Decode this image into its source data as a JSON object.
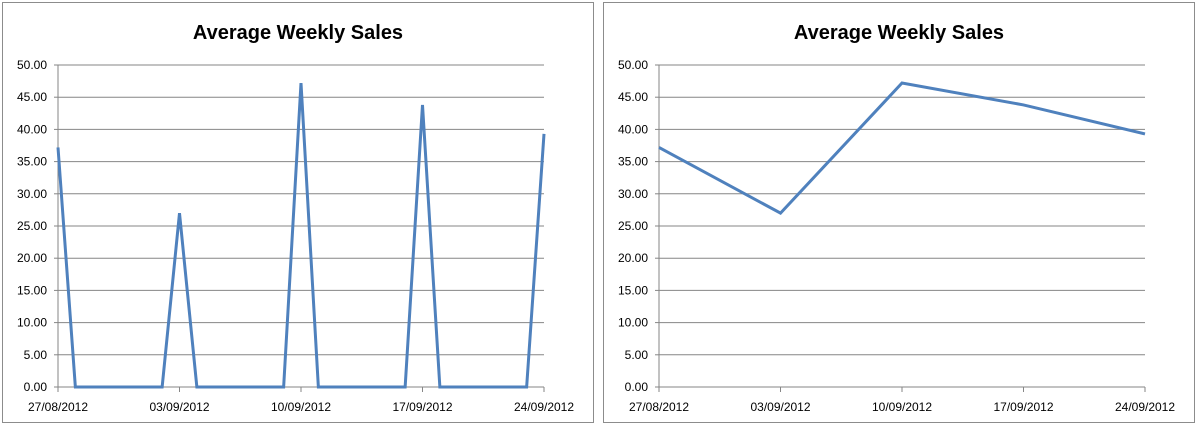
{
  "chart_data": [
    {
      "type": "line",
      "title": "Average Weekly Sales",
      "xlabel": "",
      "ylabel": "",
      "ylim": [
        0,
        50
      ],
      "y_ticks": [
        "0.00",
        "5.00",
        "10.00",
        "15.00",
        "20.00",
        "25.00",
        "30.00",
        "35.00",
        "40.00",
        "45.00",
        "50.00"
      ],
      "x_axis": "date (daily)",
      "x_ticks": [
        "27/08/2012",
        "03/09/2012",
        "10/09/2012",
        "17/09/2012",
        "24/09/2012"
      ],
      "grid": "horizontal",
      "legend": "none",
      "line_color": "#4F81BD",
      "x": [
        "27/08/2012",
        "28/08/2012",
        "29/08/2012",
        "30/08/2012",
        "31/08/2012",
        "01/09/2012",
        "02/09/2012",
        "03/09/2012",
        "04/09/2012",
        "05/09/2012",
        "06/09/2012",
        "07/09/2012",
        "08/09/2012",
        "09/09/2012",
        "10/09/2012",
        "11/09/2012",
        "12/09/2012",
        "13/09/2012",
        "14/09/2012",
        "15/09/2012",
        "16/09/2012",
        "17/09/2012",
        "18/09/2012",
        "19/09/2012",
        "20/09/2012",
        "21/09/2012",
        "22/09/2012",
        "23/09/2012",
        "24/09/2012"
      ],
      "series": [
        {
          "values": [
            37.2,
            0,
            0,
            0,
            0,
            0,
            0,
            27.0,
            0,
            0,
            0,
            0,
            0,
            0,
            47.2,
            0,
            0,
            0,
            0,
            0,
            0,
            43.8,
            0,
            0,
            0,
            0,
            0,
            0,
            39.3
          ]
        }
      ]
    },
    {
      "type": "line",
      "title": "Average Weekly Sales",
      "xlabel": "",
      "ylabel": "",
      "ylim": [
        0,
        50
      ],
      "y_ticks": [
        "0.00",
        "5.00",
        "10.00",
        "15.00",
        "20.00",
        "25.00",
        "30.00",
        "35.00",
        "40.00",
        "45.00",
        "50.00"
      ],
      "x_axis": "category",
      "x_ticks": [
        "27/08/2012",
        "03/09/2012",
        "10/09/2012",
        "17/09/2012",
        "24/09/2012"
      ],
      "grid": "horizontal",
      "legend": "none",
      "line_color": "#4F81BD",
      "categories": [
        "27/08/2012",
        "03/09/2012",
        "10/09/2012",
        "17/09/2012",
        "24/09/2012"
      ],
      "series": [
        {
          "values": [
            37.2,
            27.0,
            47.2,
            43.8,
            39.3
          ]
        }
      ]
    }
  ]
}
